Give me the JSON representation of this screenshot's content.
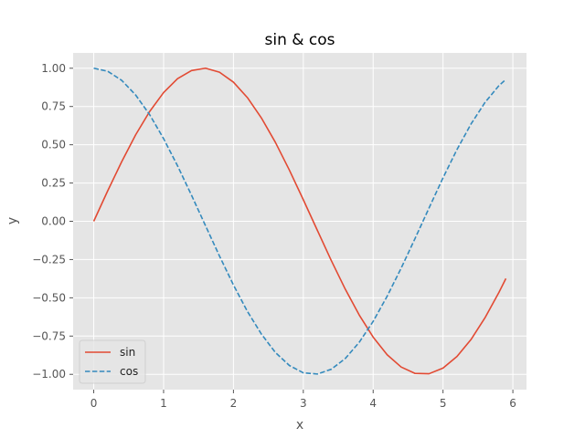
{
  "chart_data": {
    "type": "line",
    "title": "sin & cos",
    "xlabel": "x",
    "ylabel": "y",
    "xlim": [
      -0.295,
      6.195
    ],
    "ylim": [
      -1.1,
      1.1
    ],
    "grid": true,
    "legend": "lower-left",
    "background": "#e5e5e5",
    "x": [
      0,
      0.2,
      0.4,
      0.6,
      0.8,
      1.0,
      1.2,
      1.4,
      1.6,
      1.8,
      2.0,
      2.2,
      2.4,
      2.6,
      2.8,
      3.0,
      3.2,
      3.4,
      3.6,
      3.8,
      4.0,
      4.2,
      4.4,
      4.6,
      4.8,
      5.0,
      5.2,
      5.4,
      5.6,
      5.8,
      5.9
    ],
    "xticks": [
      {
        "value": 0,
        "label": "0"
      },
      {
        "value": 1,
        "label": "1"
      },
      {
        "value": 2,
        "label": "2"
      },
      {
        "value": 3,
        "label": "3"
      },
      {
        "value": 4,
        "label": "4"
      },
      {
        "value": 5,
        "label": "5"
      },
      {
        "value": 6,
        "label": "6"
      }
    ],
    "yticks": [
      {
        "value": 1.0,
        "label": "1.00"
      },
      {
        "value": 0.75,
        "label": "0.75"
      },
      {
        "value": 0.5,
        "label": "0.50"
      },
      {
        "value": 0.25,
        "label": "0.25"
      },
      {
        "value": 0.0,
        "label": "0.00"
      },
      {
        "value": -0.25,
        "label": "−0.25"
      },
      {
        "value": -0.5,
        "label": "−0.50"
      },
      {
        "value": -0.75,
        "label": "−0.75"
      },
      {
        "value": -1.0,
        "label": "−1.00"
      }
    ],
    "series": [
      {
        "name": "sin",
        "color": "#e24a33",
        "dash": "solid",
        "values": [
          0.0,
          0.199,
          0.389,
          0.565,
          0.717,
          0.841,
          0.932,
          0.985,
          1.0,
          0.974,
          0.909,
          0.808,
          0.675,
          0.516,
          0.335,
          0.141,
          -0.058,
          -0.256,
          -0.443,
          -0.612,
          -0.757,
          -0.872,
          -0.952,
          -0.994,
          -0.996,
          -0.959,
          -0.883,
          -0.773,
          -0.631,
          -0.465,
          -0.374
        ]
      },
      {
        "name": "cos",
        "color": "#348abd",
        "dash": "dashed",
        "values": [
          1.0,
          0.98,
          0.921,
          0.825,
          0.697,
          0.54,
          0.362,
          0.17,
          -0.029,
          -0.227,
          -0.416,
          -0.589,
          -0.737,
          -0.857,
          -0.942,
          -0.99,
          -0.998,
          -0.967,
          -0.897,
          -0.791,
          -0.654,
          -0.49,
          -0.307,
          -0.112,
          0.087,
          0.284,
          0.469,
          0.635,
          0.776,
          0.886,
          0.927
        ]
      }
    ]
  }
}
